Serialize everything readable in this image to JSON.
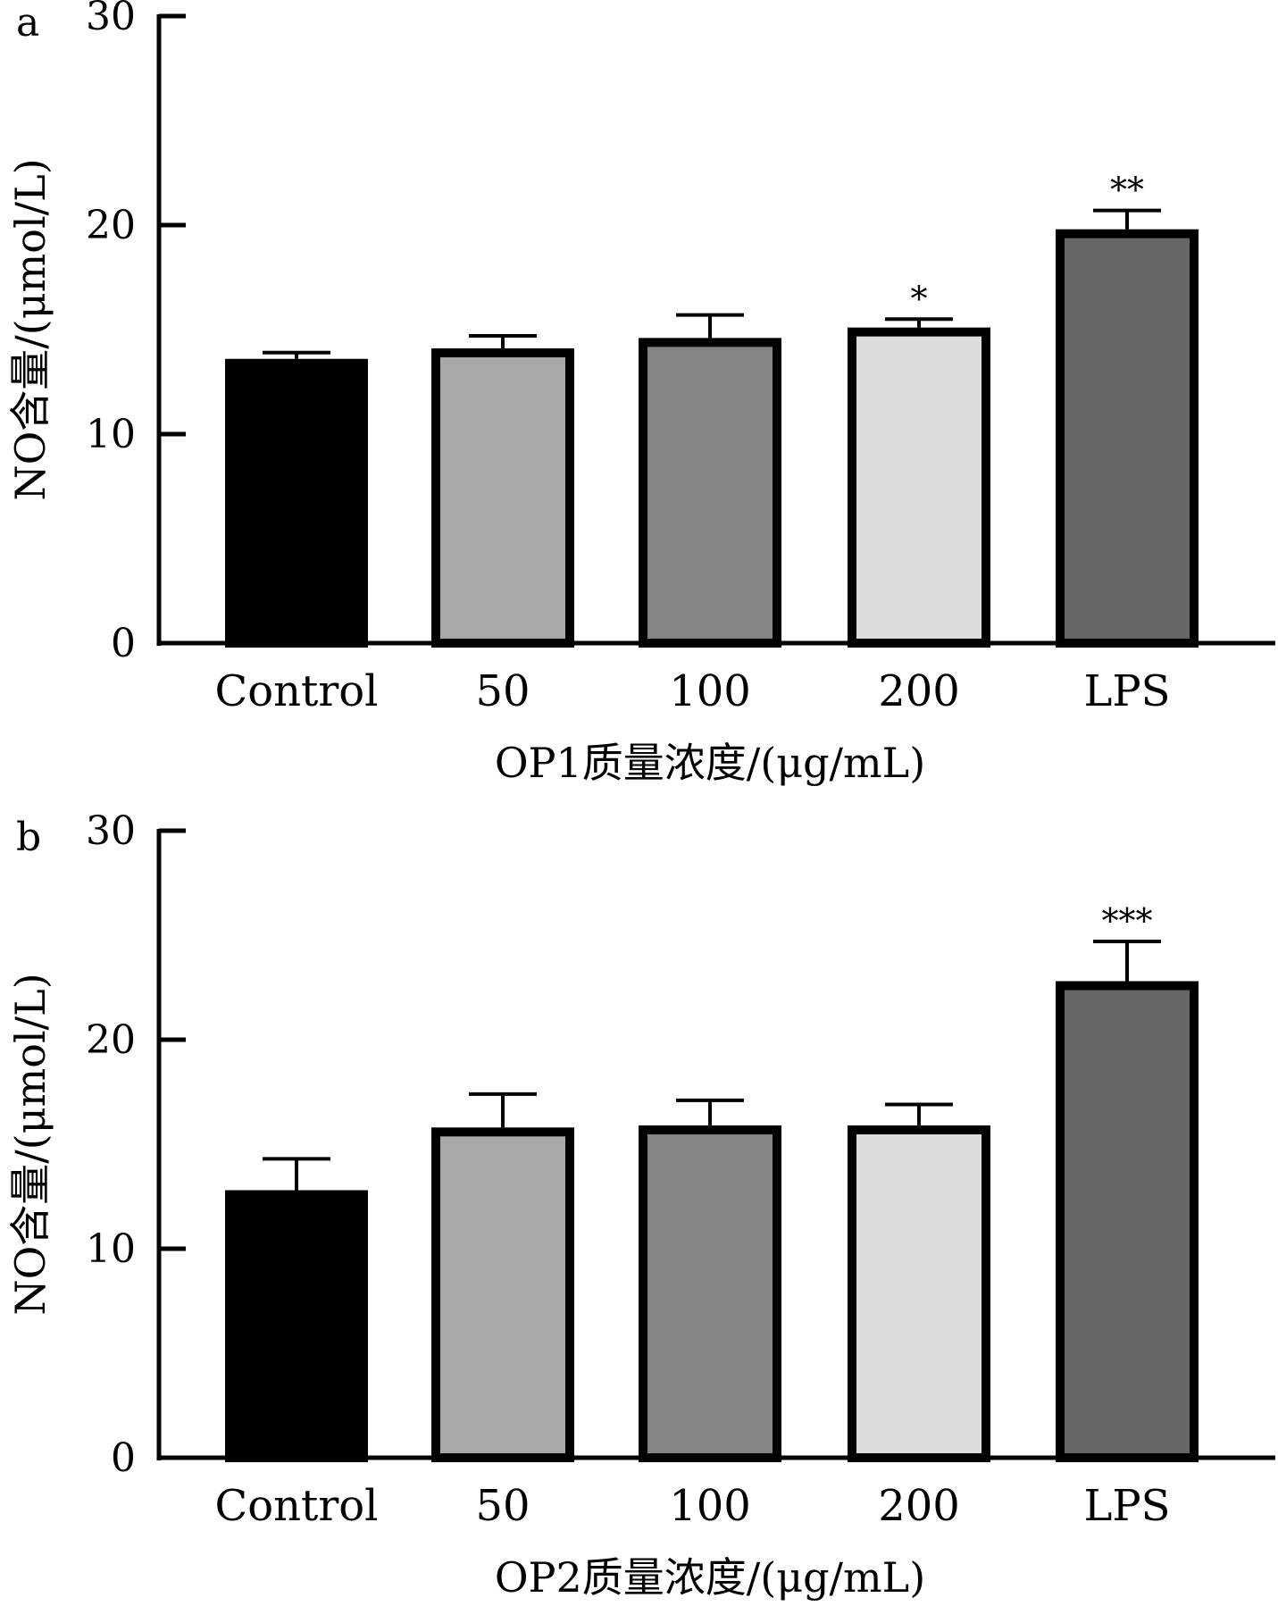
{
  "chart_data": [
    {
      "panel": "a",
      "type": "bar",
      "categories": [
        "Control",
        "50",
        "100",
        "200",
        "LPS"
      ],
      "values": [
        13.6,
        14.1,
        14.6,
        15.1,
        19.8
      ],
      "errors": [
        0.3,
        0.6,
        1.1,
        0.4,
        0.9
      ],
      "significance": [
        "",
        "",
        "",
        "*",
        "**"
      ],
      "bar_colors": [
        "#000000",
        "#a8a8a8",
        "#848484",
        "#dcdcdc",
        "#666666"
      ],
      "xlabel": "OP1质量浓度/(μg/mL)",
      "ylabel": "NO含量/(μmol/L)",
      "ylim": [
        0,
        30
      ],
      "yticks": [
        0,
        10,
        20,
        30
      ],
      "grid": false
    },
    {
      "panel": "b",
      "type": "bar",
      "categories": [
        "Control",
        "50",
        "100",
        "200",
        "LPS"
      ],
      "values": [
        12.8,
        15.8,
        15.9,
        15.9,
        22.8
      ],
      "errors": [
        1.5,
        1.6,
        1.2,
        1.0,
        1.9
      ],
      "significance": [
        "",
        "",
        "",
        "",
        "***"
      ],
      "bar_colors": [
        "#000000",
        "#a8a8a8",
        "#848484",
        "#dcdcdc",
        "#666666"
      ],
      "xlabel": "OP2质量浓度/(μg/mL)",
      "ylabel": "NO含量/(μmol/L)",
      "ylim": [
        0,
        30
      ],
      "yticks": [
        0,
        10,
        20,
        30
      ],
      "grid": false
    }
  ]
}
